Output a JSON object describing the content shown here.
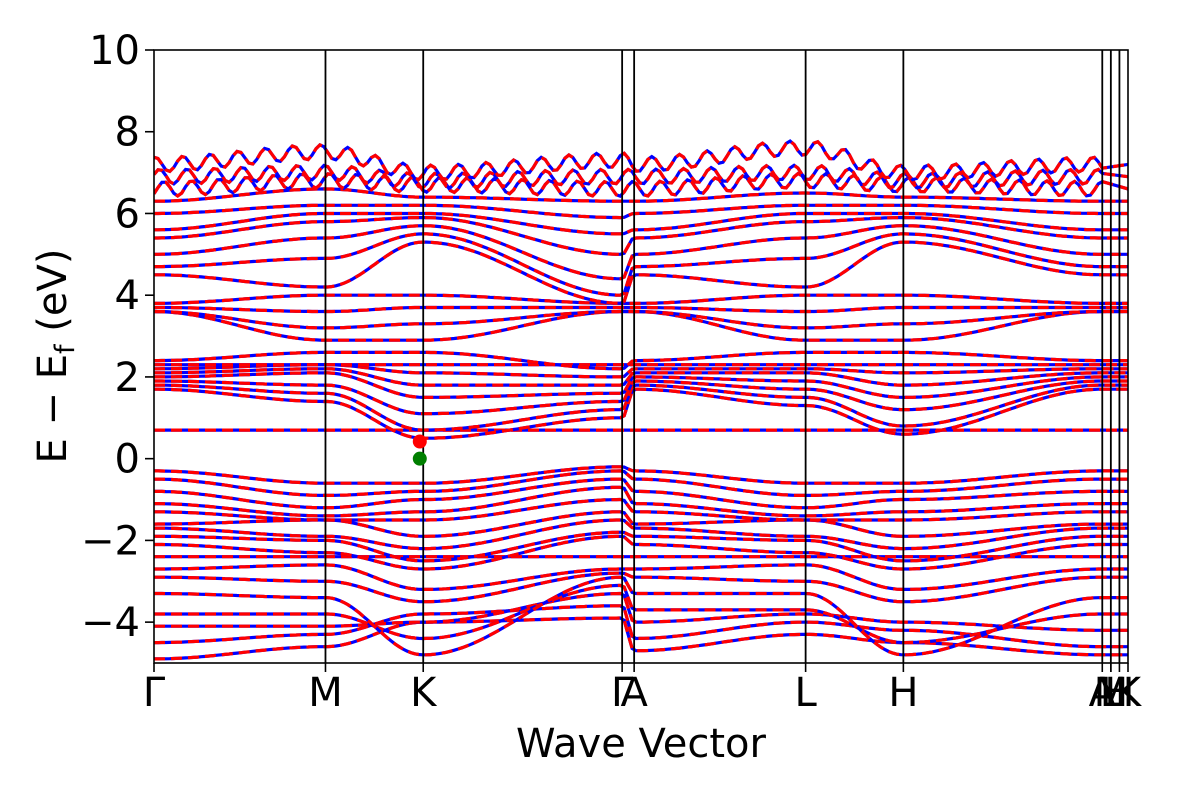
{
  "chart_data": {
    "type": "line",
    "title": "",
    "xlabel": "Wave Vector",
    "ylabel": "E − E_f (eV)",
    "ylabel_main": "E − E",
    "ylabel_sub": "f",
    "ylabel_tail": " (eV)",
    "ylim": [
      -5,
      10
    ],
    "yticks": [
      -4,
      -2,
      0,
      2,
      4,
      6,
      8,
      10
    ],
    "ytick_labels": [
      "−4",
      "−2",
      "0",
      "2",
      "4",
      "6",
      "8",
      "10"
    ],
    "grid": false,
    "legend": "none",
    "kpath_range": [
      0,
      5.68
    ],
    "kpoints": [
      {
        "label": "Γ",
        "pos": 0.0
      },
      {
        "label": "M",
        "pos": 1.0
      },
      {
        "label": "K",
        "pos": 1.57
      },
      {
        "label": "Γ",
        "pos": 2.73
      },
      {
        "label": "A",
        "pos": 2.8
      },
      {
        "label": "L",
        "pos": 3.8
      },
      {
        "label": "H",
        "pos": 4.37
      },
      {
        "label": "A",
        "pos": 5.53
      },
      {
        "label": "L",
        "pos": 5.58
      },
      {
        "label": "M",
        "pos": 5.58
      },
      {
        "label": "H",
        "pos": 5.63
      },
      {
        "label": "K",
        "pos": 5.68
      }
    ],
    "kpoint_lines": [
      1.0,
      1.57,
      2.73,
      2.8,
      3.8,
      4.37,
      5.53,
      5.58,
      5.63
    ],
    "series": [
      {
        "style": "solid",
        "color": "#0000ff"
      },
      {
        "style": "dashed",
        "color": "#ff0000"
      }
    ],
    "bands": [
      {
        "path": [
          -4.9,
          -4.6,
          -4.0,
          -3.9,
          -4.7,
          -4.3,
          -4.5,
          -4.8
        ],
        "flat": false
      },
      {
        "path": [
          -4.5,
          -4.3,
          -3.8,
          -3.6,
          -4.4,
          -4.0,
          -4.2,
          -4.6
        ],
        "flat": false
      },
      {
        "path": [
          -4.1,
          -4.1,
          -4.0,
          -3.3,
          -4.0,
          -3.8,
          -4.0,
          -4.2
        ],
        "flat": false
      },
      {
        "path": [
          -3.8,
          -3.8,
          -4.4,
          -3.1,
          -3.7,
          -3.7,
          -4.5,
          -3.8
        ],
        "flat": false
      },
      {
        "path": [
          -3.3,
          -3.4,
          -4.8,
          -2.9,
          -3.3,
          -3.3,
          -4.8,
          -3.4
        ],
        "flat": false
      },
      {
        "path": [
          -2.9,
          -3.0,
          -3.5,
          -2.8,
          -2.9,
          -3.0,
          -3.5,
          -2.9
        ],
        "flat": false
      },
      {
        "path": [
          -2.7,
          -2.6,
          -3.2,
          -2.7,
          -2.7,
          -2.6,
          -3.2,
          -2.7
        ],
        "flat": false
      },
      {
        "path": [
          -2.4,
          -2.4,
          -2.4,
          -2.4,
          -2.4,
          -2.4,
          -2.4,
          -2.4
        ],
        "flat": false
      },
      {
        "path": [
          -2.1,
          -2.3,
          -2.7,
          -1.9,
          -2.1,
          -2.3,
          -2.7,
          -2.1
        ],
        "flat": false
      },
      {
        "path": [
          -1.9,
          -2.0,
          -2.5,
          -1.8,
          -1.9,
          -2.0,
          -2.5,
          -1.9
        ],
        "flat": false
      },
      {
        "path": [
          -1.7,
          -1.9,
          -2.2,
          -1.5,
          -1.7,
          -1.9,
          -2.2,
          -1.7
        ],
        "flat": false
      },
      {
        "path": [
          -1.6,
          -1.5,
          -1.9,
          -1.3,
          -1.6,
          -1.5,
          -1.9,
          -1.6
        ],
        "flat": false
      },
      {
        "path": [
          -1.3,
          -1.5,
          -1.5,
          -1.0,
          -1.3,
          -1.5,
          -1.5,
          -1.3
        ],
        "flat": false
      },
      {
        "path": [
          -1.1,
          -1.4,
          -1.3,
          -0.7,
          -1.1,
          -1.4,
          -1.3,
          -1.1
        ],
        "flat": false
      },
      {
        "path": [
          -0.8,
          -1.2,
          -1.0,
          -0.5,
          -0.8,
          -1.2,
          -1.0,
          -0.8
        ],
        "flat": false
      },
      {
        "path": [
          -0.5,
          -0.9,
          -0.8,
          -0.3,
          -0.5,
          -0.9,
          -0.8,
          -0.5
        ],
        "flat": false
      },
      {
        "path": [
          -0.3,
          -0.6,
          -0.6,
          -0.2,
          -0.3,
          -0.6,
          -0.6,
          -0.3
        ],
        "flat": false
      },
      {
        "path": [
          0.7,
          0.7,
          0.7,
          0.7,
          0.7,
          0.7,
          0.7,
          0.7
        ],
        "flat": true
      },
      {
        "path": [
          1.7,
          1.4,
          0.5,
          1.0,
          1.7,
          1.3,
          0.6,
          1.7
        ],
        "flat": false
      },
      {
        "path": [
          1.8,
          1.6,
          0.7,
          1.2,
          1.8,
          1.5,
          0.8,
          1.8
        ],
        "flat": false
      },
      {
        "path": [
          1.9,
          1.8,
          1.1,
          1.4,
          1.9,
          1.7,
          1.2,
          1.9
        ],
        "flat": false
      },
      {
        "path": [
          2.0,
          2.1,
          1.5,
          1.6,
          2.0,
          1.9,
          1.5,
          2.0
        ],
        "flat": false
      },
      {
        "path": [
          2.1,
          2.2,
          1.8,
          1.8,
          2.1,
          2.1,
          1.8,
          2.1
        ],
        "flat": false
      },
      {
        "path": [
          2.2,
          2.3,
          2.1,
          2.0,
          2.2,
          2.2,
          2.1,
          2.2
        ],
        "flat": false
      },
      {
        "path": [
          2.3,
          2.3,
          2.3,
          2.3,
          2.3,
          2.3,
          2.3,
          2.3
        ],
        "flat": false
      },
      {
        "path": [
          2.4,
          2.6,
          2.6,
          2.2,
          2.4,
          2.6,
          2.6,
          2.4
        ],
        "flat": false
      },
      {
        "path": [
          3.6,
          2.9,
          2.9,
          3.6,
          3.6,
          2.9,
          2.9,
          3.6
        ],
        "flat": false
      },
      {
        "path": [
          3.6,
          3.2,
          3.3,
          3.6,
          3.6,
          3.2,
          3.3,
          3.6
        ],
        "flat": false
      },
      {
        "path": [
          3.7,
          3.6,
          3.7,
          3.7,
          3.7,
          3.6,
          3.7,
          3.7
        ],
        "flat": false
      },
      {
        "path": [
          3.8,
          4.0,
          4.0,
          3.8,
          3.8,
          4.0,
          4.0,
          3.8
        ],
        "flat": false
      },
      {
        "path": [
          4.5,
          4.2,
          5.3,
          3.8,
          4.5,
          4.2,
          5.3,
          4.5
        ],
        "flat": false
      },
      {
        "path": [
          4.7,
          4.9,
          5.5,
          4.0,
          4.7,
          4.9,
          5.5,
          4.7
        ],
        "flat": false
      },
      {
        "path": [
          5.0,
          5.4,
          5.7,
          4.4,
          5.0,
          5.4,
          5.7,
          5.0
        ],
        "flat": false
      },
      {
        "path": [
          5.4,
          5.8,
          5.9,
          5.0,
          5.4,
          5.8,
          5.9,
          5.4
        ],
        "flat": false
      },
      {
        "path": [
          5.6,
          6.0,
          6.0,
          5.5,
          5.6,
          6.0,
          6.0,
          5.6
        ],
        "flat": false
      },
      {
        "path": [
          6.0,
          6.2,
          6.2,
          5.9,
          6.0,
          6.2,
          6.2,
          6.0
        ],
        "flat": false
      },
      {
        "path": [
          6.3,
          6.6,
          6.4,
          6.3,
          6.3,
          6.5,
          6.4,
          6.3
        ],
        "flat": false
      },
      {
        "path": [
          6.6,
          6.8,
          6.7,
          6.6,
          6.6,
          6.8,
          6.7,
          6.6
        ],
        "flat": false
      },
      {
        "path": [
          6.9,
          7.0,
          6.8,
          6.9,
          6.9,
          7.0,
          6.8,
          6.9
        ],
        "flat": false
      },
      {
        "path": [
          7.2,
          7.5,
          7.0,
          7.3,
          7.2,
          7.6,
          7.0,
          7.2
        ],
        "flat": false
      }
    ],
    "markers": [
      {
        "x": 1.55,
        "y": 0.0,
        "color": "#007f00"
      },
      {
        "x": 1.55,
        "y": 0.42,
        "color": "#ff0000"
      }
    ]
  }
}
